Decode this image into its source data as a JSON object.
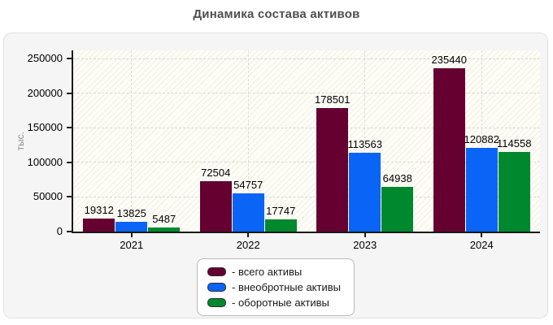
{
  "title": "Динамика состава активов",
  "y_axis_label": "тыс.",
  "colors": {
    "panel_bg": "#f5f5f5",
    "series": [
      "#650031",
      "#0a64f5",
      "#00882e"
    ],
    "axis": "#1a1a1a",
    "grid": "#d6d6d6"
  },
  "chart_data": {
    "type": "bar",
    "title": "Динамика состава активов",
    "ylabel": "тыс.",
    "categories": [
      "2021",
      "2022",
      "2023",
      "2024"
    ],
    "series": [
      {
        "name": "- всего активы",
        "color": "#650031",
        "values": [
          19312,
          72504,
          178501,
          235440
        ]
      },
      {
        "name": "- внеобротные активы",
        "color": "#0a64f5",
        "values": [
          13825,
          54757,
          113563,
          120882
        ]
      },
      {
        "name": "- оборотные активы",
        "color": "#00882e",
        "values": [
          5487,
          17747,
          64938,
          114558
        ]
      }
    ],
    "yticks": [
      0,
      50000,
      100000,
      150000,
      200000,
      250000
    ],
    "ylim": [
      0,
      261700
    ],
    "grid": true,
    "bar_labels": true,
    "legend_position": "bottom-center"
  }
}
